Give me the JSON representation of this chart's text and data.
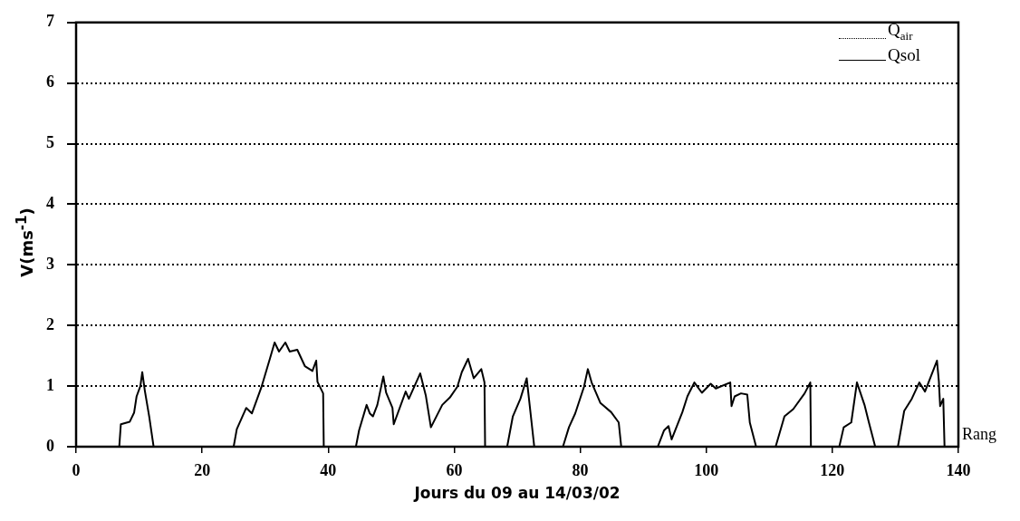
{
  "chart_data": {
    "type": "line",
    "xlabel": "Jours du 09 au 14/03/02",
    "ylabel": "V(ms$^{-1}$)",
    "xlim": [
      0,
      140
    ],
    "xticks": [
      0,
      20,
      40,
      60,
      80,
      100,
      120,
      140
    ],
    "ylim": [
      0,
      7
    ],
    "yticks": [
      0,
      1,
      2,
      3,
      4,
      5,
      6,
      7
    ],
    "grid": "y",
    "legend": "top right",
    "marker": "none",
    "annotations": [
      {
        "text": "Rang",
        "x": 140,
        "y": 0
      }
    ],
    "series": [
      {
        "name": "Q$_{air}$",
        "color": "#000000",
        "line_style": "dotted"
      },
      {
        "name": "Qsol",
        "color": "#000000",
        "line_style": "solid",
        "x": [
          0,
          6.85,
          7.1,
          8.5,
          9.2,
          9.6,
          10.2,
          10.5,
          10.9,
          11.6,
          12.3,
          25.0,
          25.5,
          27.0,
          27.9,
          29.4,
          30.8,
          31.5,
          32.2,
          33.2,
          33.9,
          35.1,
          36.3,
          37.5,
          38.1,
          38.3,
          39.2,
          39.3,
          44.4,
          44.9,
          46.1,
          46.6,
          47.1,
          47.8,
          48.75,
          49.2,
          50.2,
          50.4,
          52.3,
          52.8,
          54.6,
          55.5,
          56.3,
          58.1,
          59.3,
          60.5,
          61.2,
          62.2,
          63.1,
          64.3,
          64.8,
          64.9,
          68.4,
          69.3,
          70.5,
          71.5,
          72.7,
          77.25,
          78.2,
          79.2,
          80.6,
          81.2,
          81.8,
          83.2,
          84.9,
          86.1,
          86.5,
          92.3,
          93.3,
          94.0,
          94.5,
          96.2,
          97.0,
          98.1,
          99.3,
          100.7,
          101.5,
          103.8,
          104.0,
          104.5,
          105.5,
          106.5,
          106.9,
          107.9,
          111.0,
          112.4,
          113.8,
          115.6,
          116.5,
          116.6,
          121.1,
          121.8,
          123.0,
          123.9,
          125.1,
          125.8,
          126.8,
          130.4,
          131.4,
          132.6,
          133.8,
          134.7,
          136.6,
          136.9,
          137.1,
          137.6,
          137.8,
          140
        ],
        "values": [
          0,
          0,
          0.37,
          0.41,
          0.56,
          0.83,
          1.0,
          1.23,
          0.93,
          0.5,
          0,
          0,
          0.29,
          0.64,
          0.55,
          0.98,
          1.47,
          1.72,
          1.57,
          1.72,
          1.57,
          1.6,
          1.33,
          1.25,
          1.42,
          1.07,
          0.88,
          0,
          0,
          0.27,
          0.69,
          0.55,
          0.5,
          0.69,
          1.16,
          0.89,
          0.64,
          0.37,
          0.91,
          0.79,
          1.21,
          0.84,
          0.32,
          0.69,
          0.81,
          0.99,
          1.23,
          1.45,
          1.13,
          1.28,
          1.06,
          0,
          0,
          0.5,
          0.79,
          1.13,
          0,
          0,
          0.32,
          0.55,
          0.99,
          1.28,
          1.06,
          0.72,
          0.57,
          0.4,
          0,
          0,
          0.27,
          0.34,
          0.12,
          0.57,
          0.83,
          1.06,
          0.89,
          1.04,
          0.96,
          1.06,
          0.67,
          0.83,
          0.88,
          0.86,
          0.4,
          0,
          0,
          0.5,
          0.62,
          0.88,
          1.06,
          0,
          0,
          0.32,
          0.4,
          1.06,
          0.69,
          0.4,
          0,
          0,
          0.59,
          0.79,
          1.06,
          0.91,
          1.42,
          1.08,
          0.67,
          0.79,
          0,
          0
        ]
      }
    ]
  }
}
